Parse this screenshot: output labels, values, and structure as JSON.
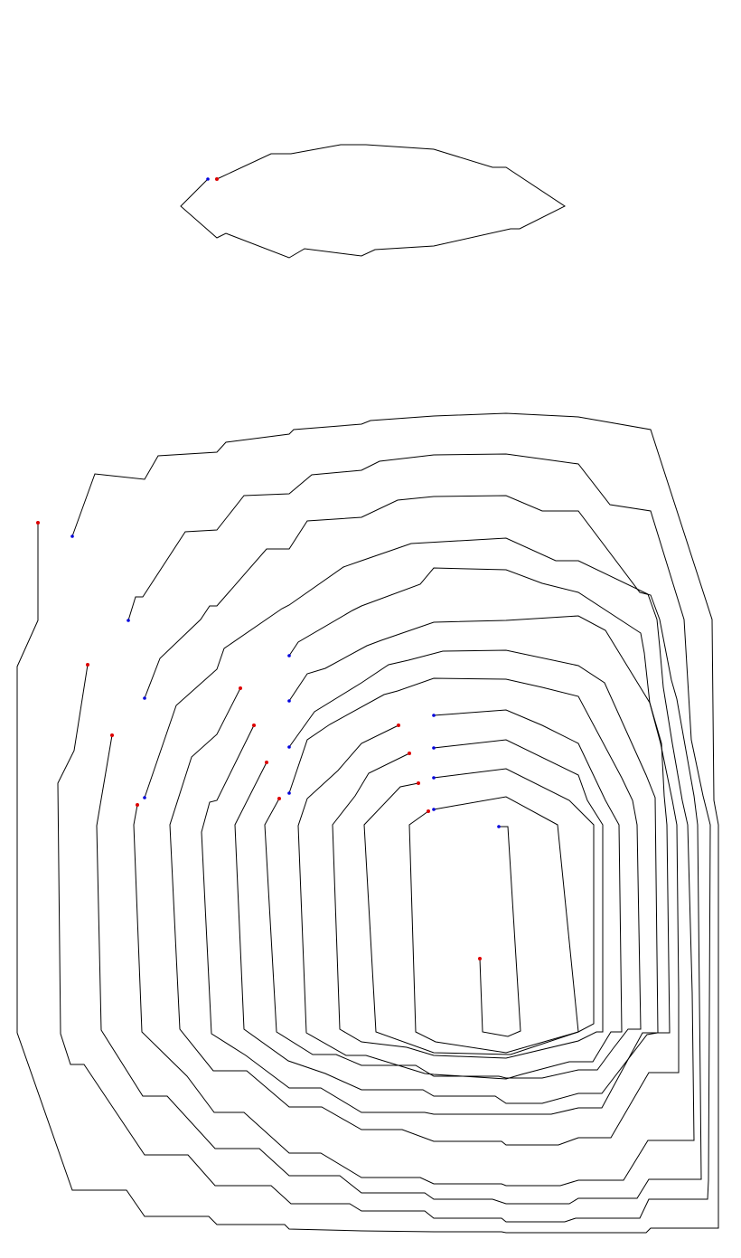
{
  "colors": {
    "background": "#ffffff",
    "line": "#000000",
    "start_marker": "#dd0000",
    "end_marker": "#0000dd"
  },
  "marker_legend": {
    "start_marker": "red-dot",
    "end_marker": "blue-dot"
  }
}
